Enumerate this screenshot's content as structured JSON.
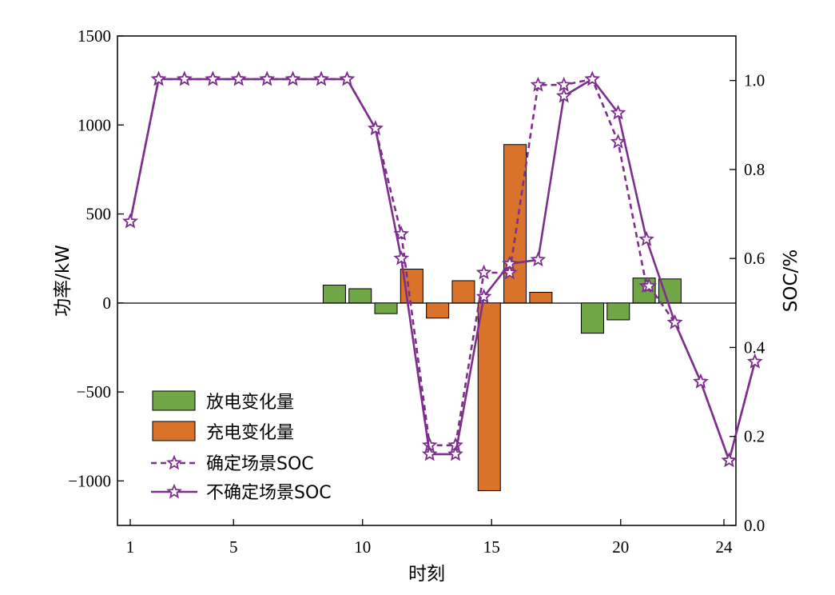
{
  "chart_data": {
    "type": "bar",
    "xlabel": "时刻",
    "ylabel_left": "功率/kW",
    "ylabel_right": "SOC/%",
    "x_ticks": [
      1,
      5,
      10,
      15,
      20,
      24
    ],
    "x_range": [
      0.5,
      24.5
    ],
    "y_left_ticks": [
      1500,
      1000,
      500,
      0,
      -500,
      -1000
    ],
    "y_left_tick_labels": [
      "1500",
      "1000",
      "500",
      "0",
      "−500",
      "−1000"
    ],
    "y_left_range": [
      -1250,
      1500
    ],
    "y_right_ticks": [
      1.0,
      0.8,
      0.6,
      0.4,
      0.2,
      0.0
    ],
    "y_right_tick_labels": [
      "1.0",
      "0.8",
      "0.6",
      "0.4",
      "0.2",
      "0.0"
    ],
    "y_right_range": [
      0.0,
      1.1
    ],
    "legend_position": "lower-left",
    "colors": {
      "discharge": "#70A645",
      "charge": "#D9722A",
      "soc_line": "#7E2F8E"
    },
    "legend": [
      "放电变化量",
      "充电变化量",
      "确定场景SOC",
      "不确定场景SOC"
    ],
    "discharge_bars": [
      {
        "x": 9,
        "value": 100
      },
      {
        "x": 10,
        "value": 80
      },
      {
        "x": 11,
        "value": -60
      },
      {
        "x": 19,
        "value": -170
      },
      {
        "x": 20,
        "value": -95
      },
      {
        "x": 21,
        "value": 140
      },
      {
        "x": 22,
        "value": 135
      }
    ],
    "charge_bars": [
      {
        "x": 12,
        "value": 190
      },
      {
        "x": 13,
        "value": -85
      },
      {
        "x": 14,
        "value": 125
      },
      {
        "x": 15,
        "value": -1055
      },
      {
        "x": 16,
        "value": 890
      },
      {
        "x": 17,
        "value": 60
      }
    ],
    "soc_deterministic": [
      {
        "x": 1,
        "y": 0.683
      },
      {
        "x": 2.1,
        "y": 1.003
      },
      {
        "x": 3.1,
        "y": 1.003
      },
      {
        "x": 4.2,
        "y": 1.003
      },
      {
        "x": 5.2,
        "y": 1.003
      },
      {
        "x": 6.3,
        "y": 1.003
      },
      {
        "x": 7.3,
        "y": 1.003
      },
      {
        "x": 8.4,
        "y": 1.003
      },
      {
        "x": 9.4,
        "y": 1.003
      },
      {
        "x": 10.5,
        "y": 0.892
      },
      {
        "x": 11.5,
        "y": 0.655
      },
      {
        "x": 12.6,
        "y": 0.18
      },
      {
        "x": 13.6,
        "y": 0.18
      },
      {
        "x": 14.7,
        "y": 0.568
      },
      {
        "x": 15.7,
        "y": 0.568
      },
      {
        "x": 16.8,
        "y": 0.99
      },
      {
        "x": 17.8,
        "y": 0.99
      },
      {
        "x": 18.9,
        "y": 1.003
      },
      {
        "x": 19.9,
        "y": 0.862
      },
      {
        "x": 21.0,
        "y": 0.538
      },
      {
        "x": 21.1,
        "y": 0.538
      },
      {
        "x": 22.1,
        "y": 0.456
      },
      {
        "x": 23.1,
        "y": 0.323
      },
      {
        "x": 24.2,
        "y": 0.146
      },
      {
        "x": 25.2,
        "y": 0.368
      }
    ],
    "soc_uncertain": [
      {
        "x": 1,
        "y": 0.683
      },
      {
        "x": 2.1,
        "y": 1.003
      },
      {
        "x": 3.1,
        "y": 1.003
      },
      {
        "x": 4.2,
        "y": 1.003
      },
      {
        "x": 5.2,
        "y": 1.003
      },
      {
        "x": 6.3,
        "y": 1.003
      },
      {
        "x": 7.3,
        "y": 1.003
      },
      {
        "x": 8.4,
        "y": 1.003
      },
      {
        "x": 9.4,
        "y": 1.003
      },
      {
        "x": 10.5,
        "y": 0.892
      },
      {
        "x": 11.5,
        "y": 0.6
      },
      {
        "x": 12.6,
        "y": 0.16
      },
      {
        "x": 13.6,
        "y": 0.16
      },
      {
        "x": 14.7,
        "y": 0.514
      },
      {
        "x": 15.7,
        "y": 0.588
      },
      {
        "x": 16.8,
        "y": 0.597
      },
      {
        "x": 17.8,
        "y": 0.965
      },
      {
        "x": 18.9,
        "y": 1.003
      },
      {
        "x": 19.9,
        "y": 0.927
      },
      {
        "x": 21.0,
        "y": 0.643
      },
      {
        "x": 22.1,
        "y": 0.456
      },
      {
        "x": 23.1,
        "y": 0.323
      },
      {
        "x": 24.2,
        "y": 0.146
      },
      {
        "x": 25.2,
        "y": 0.368
      }
    ]
  }
}
